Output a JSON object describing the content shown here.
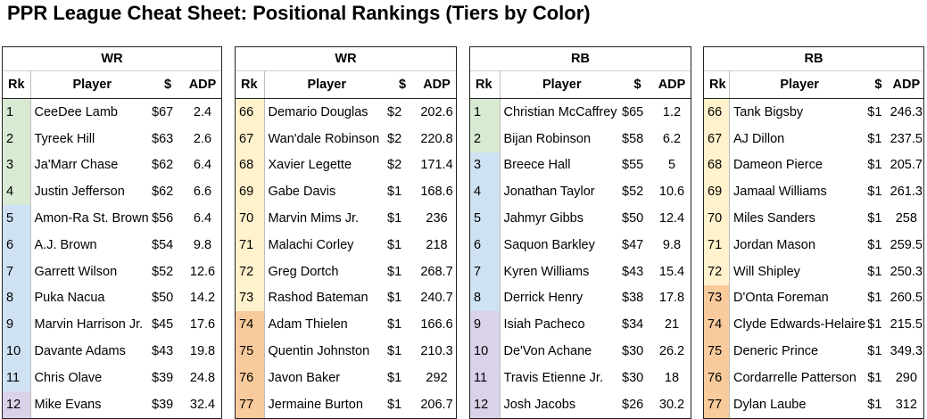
{
  "title": "PPR League Cheat Sheet: Positional Rankings (Tiers by Color)",
  "tier_colors": {
    "green": "#d9ead3",
    "blue": "#cfe2f3",
    "purple": "#d9d2e9",
    "yellow": "#fff2cc",
    "orange": "#fce5cd",
    "dark_orange": "#f9cb9c"
  },
  "columns": {
    "rk": "Rk",
    "player": "Player",
    "price": "$",
    "adp": "ADP"
  },
  "tables": [
    {
      "position": "WR",
      "rows": [
        {
          "rk": "1",
          "player": "CeeDee Lamb",
          "price": "$67",
          "adp": "2.4",
          "tier": "green"
        },
        {
          "rk": "2",
          "player": "Tyreek Hill",
          "price": "$63",
          "adp": "2.6",
          "tier": "green"
        },
        {
          "rk": "3",
          "player": "Ja'Marr Chase",
          "price": "$62",
          "adp": "6.4",
          "tier": "green"
        },
        {
          "rk": "4",
          "player": "Justin Jefferson",
          "price": "$62",
          "adp": "6.6",
          "tier": "green"
        },
        {
          "rk": "5",
          "player": "Amon-Ra St. Brown",
          "price": "$56",
          "adp": "6.4",
          "tier": "blue"
        },
        {
          "rk": "6",
          "player": "A.J. Brown",
          "price": "$54",
          "adp": "9.8",
          "tier": "blue"
        },
        {
          "rk": "7",
          "player": "Garrett Wilson",
          "price": "$52",
          "adp": "12.6",
          "tier": "blue"
        },
        {
          "rk": "8",
          "player": "Puka Nacua",
          "price": "$50",
          "adp": "14.2",
          "tier": "blue"
        },
        {
          "rk": "9",
          "player": "Marvin Harrison Jr.",
          "price": "$45",
          "adp": "17.6",
          "tier": "blue"
        },
        {
          "rk": "10",
          "player": "Davante Adams",
          "price": "$43",
          "adp": "19.8",
          "tier": "blue"
        },
        {
          "rk": "11",
          "player": "Chris Olave",
          "price": "$39",
          "adp": "24.8",
          "tier": "blue"
        },
        {
          "rk": "12",
          "player": "Mike Evans",
          "price": "$39",
          "adp": "32.4",
          "tier": "purple"
        }
      ]
    },
    {
      "position": "WR",
      "rows": [
        {
          "rk": "66",
          "player": "Demario Douglas",
          "price": "$2",
          "adp": "202.6",
          "tier": "yellow"
        },
        {
          "rk": "67",
          "player": "Wan'dale Robinson",
          "price": "$2",
          "adp": "220.8",
          "tier": "yellow"
        },
        {
          "rk": "68",
          "player": "Xavier Legette",
          "price": "$2",
          "adp": "171.4",
          "tier": "yellow"
        },
        {
          "rk": "69",
          "player": "Gabe Davis",
          "price": "$1",
          "adp": "168.6",
          "tier": "yellow"
        },
        {
          "rk": "70",
          "player": "Marvin Mims Jr.",
          "price": "$1",
          "adp": "236",
          "tier": "yellow"
        },
        {
          "rk": "71",
          "player": "Malachi Corley",
          "price": "$1",
          "adp": "218",
          "tier": "yellow"
        },
        {
          "rk": "72",
          "player": "Greg Dortch",
          "price": "$1",
          "adp": "268.7",
          "tier": "yellow"
        },
        {
          "rk": "73",
          "player": "Rashod Bateman",
          "price": "$1",
          "adp": "240.7",
          "tier": "yellow"
        },
        {
          "rk": "74",
          "player": "Adam Thielen",
          "price": "$1",
          "adp": "166.6",
          "tier": "dark_orange"
        },
        {
          "rk": "75",
          "player": "Quentin Johnston",
          "price": "$1",
          "adp": "210.3",
          "tier": "dark_orange"
        },
        {
          "rk": "76",
          "player": "Javon Baker",
          "price": "$1",
          "adp": "292",
          "tier": "dark_orange"
        },
        {
          "rk": "77",
          "player": "Jermaine Burton",
          "price": "$1",
          "adp": "206.7",
          "tier": "dark_orange"
        }
      ]
    },
    {
      "position": "RB",
      "rows": [
        {
          "rk": "1",
          "player": "Christian McCaffrey",
          "price": "$65",
          "adp": "1.2",
          "tier": "green"
        },
        {
          "rk": "2",
          "player": "Bijan Robinson",
          "price": "$58",
          "adp": "6.2",
          "tier": "green"
        },
        {
          "rk": "3",
          "player": "Breece Hall",
          "price": "$55",
          "adp": "5",
          "tier": "blue"
        },
        {
          "rk": "4",
          "player": "Jonathan Taylor",
          "price": "$52",
          "adp": "10.6",
          "tier": "blue"
        },
        {
          "rk": "5",
          "player": "Jahmyr Gibbs",
          "price": "$50",
          "adp": "12.4",
          "tier": "blue"
        },
        {
          "rk": "6",
          "player": "Saquon Barkley",
          "price": "$47",
          "adp": "9.8",
          "tier": "blue"
        },
        {
          "rk": "7",
          "player": "Kyren Williams",
          "price": "$43",
          "adp": "15.4",
          "tier": "blue"
        },
        {
          "rk": "8",
          "player": "Derrick Henry",
          "price": "$38",
          "adp": "17.8",
          "tier": "blue"
        },
        {
          "rk": "9",
          "player": "Isiah Pacheco",
          "price": "$34",
          "adp": "21",
          "tier": "purple"
        },
        {
          "rk": "10",
          "player": "De'Von Achane",
          "price": "$30",
          "adp": "26.2",
          "tier": "purple"
        },
        {
          "rk": "11",
          "player": "Travis Etienne Jr.",
          "price": "$30",
          "adp": "18",
          "tier": "purple"
        },
        {
          "rk": "12",
          "player": "Josh Jacobs",
          "price": "$26",
          "adp": "30.2",
          "tier": "purple"
        }
      ]
    },
    {
      "position": "RB",
      "rows": [
        {
          "rk": "66",
          "player": "Tank Bigsby",
          "price": "$1",
          "adp": "246.3",
          "tier": "yellow"
        },
        {
          "rk": "67",
          "player": "AJ Dillon",
          "price": "$1",
          "adp": "237.5",
          "tier": "yellow"
        },
        {
          "rk": "68",
          "player": "Dameon Pierce",
          "price": "$1",
          "adp": "205.7",
          "tier": "yellow"
        },
        {
          "rk": "69",
          "player": "Jamaal Williams",
          "price": "$1",
          "adp": "261.3",
          "tier": "yellow"
        },
        {
          "rk": "70",
          "player": "Miles Sanders",
          "price": "$1",
          "adp": "258",
          "tier": "yellow"
        },
        {
          "rk": "71",
          "player": "Jordan Mason",
          "price": "$1",
          "adp": "259.5",
          "tier": "yellow"
        },
        {
          "rk": "72",
          "player": "Will Shipley",
          "price": "$1",
          "adp": "250.3",
          "tier": "yellow"
        },
        {
          "rk": "73",
          "player": "D'Onta Foreman",
          "price": "$1",
          "adp": "260.5",
          "tier": "dark_orange"
        },
        {
          "rk": "74",
          "player": "Clyde Edwards-Helaire",
          "price": "$1",
          "adp": "215.5",
          "tier": "dark_orange"
        },
        {
          "rk": "75",
          "player": "Deneric Prince",
          "price": "$1",
          "adp": "349.3",
          "tier": "dark_orange"
        },
        {
          "rk": "76",
          "player": "Cordarrelle Patterson",
          "price": "$1",
          "adp": "290",
          "tier": "dark_orange"
        },
        {
          "rk": "77",
          "player": "Dylan Laube",
          "price": "$1",
          "adp": "312",
          "tier": "dark_orange"
        }
      ]
    }
  ]
}
